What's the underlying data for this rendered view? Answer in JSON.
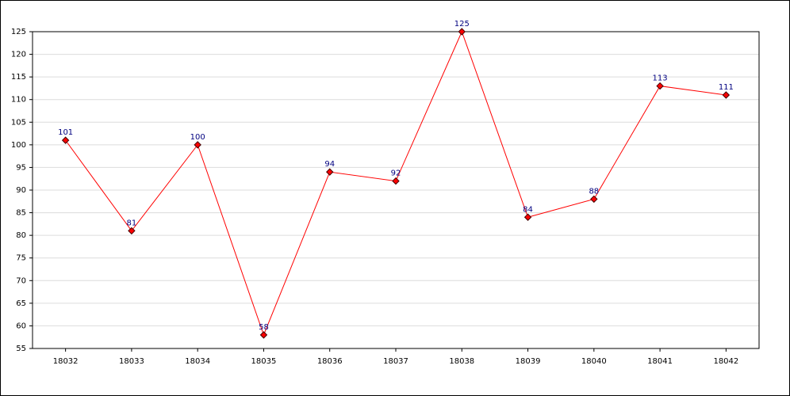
{
  "chart_data": {
    "type": "line",
    "categories": [
      "18032",
      "18033",
      "18034",
      "18035",
      "18036",
      "18037",
      "18038",
      "18039",
      "18040",
      "18041",
      "18042"
    ],
    "values": [
      101,
      81,
      100,
      58,
      94,
      92,
      125,
      84,
      88,
      113,
      111
    ],
    "color": "#ff0000",
    "ylim": [
      55,
      125
    ],
    "yticks": [
      55,
      60,
      65,
      70,
      75,
      80,
      85,
      90,
      95,
      100,
      105,
      110,
      115,
      120,
      125
    ],
    "grid": true
  }
}
